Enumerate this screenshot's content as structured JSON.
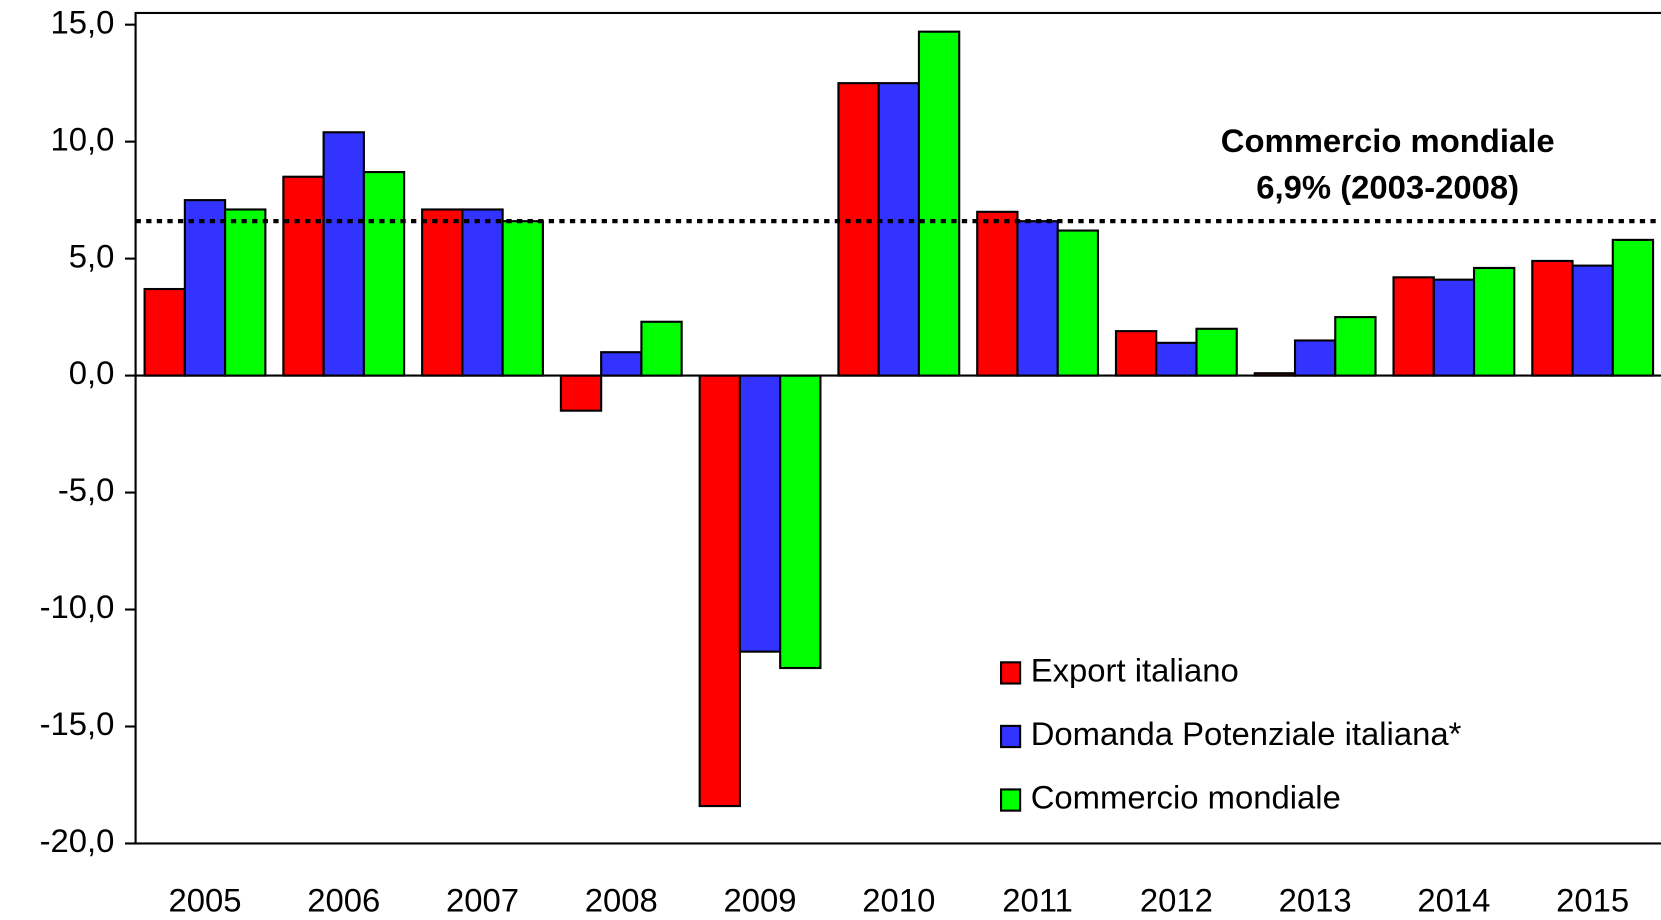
{
  "chart_data": {
    "type": "bar",
    "categories": [
      "2005",
      "2006",
      "2007",
      "2008",
      "2009",
      "2010",
      "2011",
      "2012",
      "2013",
      "2014",
      "2015"
    ],
    "series": [
      {
        "name": "Export italiano",
        "color": "#ff0000",
        "values": [
          3.7,
          8.5,
          7.1,
          -1.5,
          -18.4,
          12.5,
          7.0,
          1.9,
          0.1,
          4.2,
          4.9
        ]
      },
      {
        "name": "Domanda Potenziale italiana*",
        "color": "#3333ff",
        "values": [
          7.5,
          10.4,
          7.1,
          1.0,
          -11.8,
          12.5,
          6.6,
          1.4,
          1.5,
          4.1,
          4.7
        ]
      },
      {
        "name": "Commercio mondiale",
        "color": "#00ff00",
        "values": [
          7.1,
          8.7,
          6.6,
          2.3,
          -12.5,
          14.7,
          6.2,
          2.0,
          2.5,
          4.6,
          5.8
        ]
      }
    ],
    "ylim": [
      -20,
      15.5
    ],
    "yticks": [
      {
        "value": -20,
        "label": "-20,0"
      },
      {
        "value": -15,
        "label": "-15,0"
      },
      {
        "value": -10,
        "label": "-10,0"
      },
      {
        "value": -5,
        "label": "-5,0"
      },
      {
        "value": 0,
        "label": "0,0"
      },
      {
        "value": 5,
        "label": "5,0"
      },
      {
        "value": 10,
        "label": "10,0"
      },
      {
        "value": 15,
        "label": "15,0"
      }
    ],
    "reference_line": {
      "value": 6.6
    },
    "annotation": [
      "Commercio mondiale",
      "6,9% (2003-2008)"
    ],
    "legend": "bottom-right"
  }
}
